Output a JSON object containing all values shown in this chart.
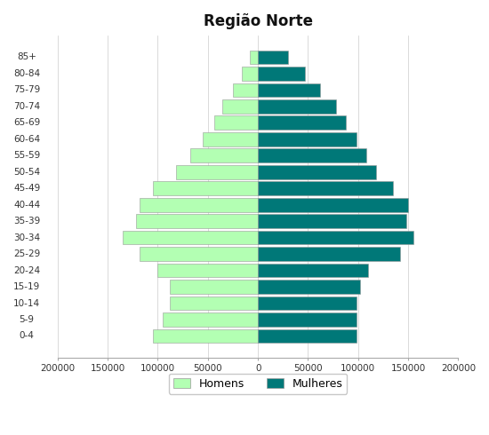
{
  "title": "Região Norte",
  "age_groups": [
    "85+",
    "80-84",
    "75-79",
    "70-74",
    "65-69",
    "60-64",
    "55-59",
    "50-54",
    "45-49",
    "40-44",
    "35-39",
    "30-34",
    "25-29",
    "20-24",
    "15-19",
    "10-14",
    "5-9",
    "0-4"
  ],
  "homens": [
    8000,
    16000,
    25000,
    36000,
    44000,
    55000,
    68000,
    82000,
    105000,
    118000,
    122000,
    135000,
    118000,
    100000,
    88000,
    88000,
    95000,
    105000
  ],
  "mulheres": [
    30000,
    47000,
    62000,
    78000,
    88000,
    98000,
    108000,
    118000,
    135000,
    150000,
    148000,
    155000,
    142000,
    110000,
    102000,
    98000,
    98000,
    98000
  ],
  "color_homens": "#b3ffb3",
  "color_mulheres": "#007878",
  "bar_edgecolor": "#999999",
  "xlim": 200000,
  "legend_homens": "Homens",
  "legend_mulheres": "Mulheres",
  "background_color": "#ffffff",
  "bar_height": 0.85,
  "label_fontsize": 7.5,
  "title_fontsize": 12
}
